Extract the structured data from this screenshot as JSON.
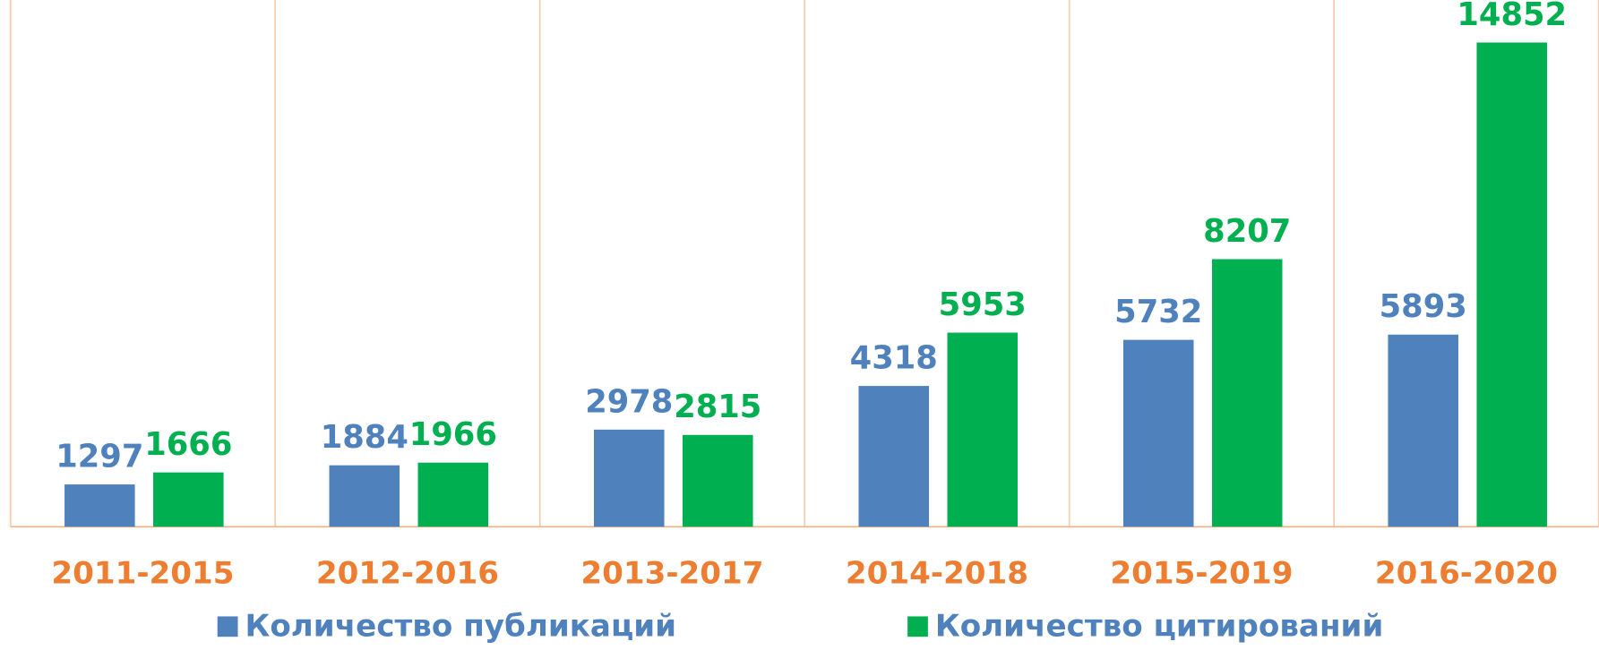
{
  "chart_data": {
    "type": "bar",
    "categories": [
      "2011-2015",
      "2012-2016",
      "2013-2017",
      "2014-2018",
      "2015-2019",
      "2016-2020"
    ],
    "series": [
      {
        "name": "Количество публикаций",
        "color": "#4F81BD",
        "values": [
          1297,
          1884,
          2978,
          4318,
          5732,
          5893
        ]
      },
      {
        "name": "Количество цитирований",
        "color": "#00B050",
        "values": [
          1666,
          1966,
          2815,
          5953,
          8207,
          14852
        ]
      }
    ],
    "ylim": [
      0,
      16000
    ],
    "grid": false,
    "legend": "bottom"
  }
}
